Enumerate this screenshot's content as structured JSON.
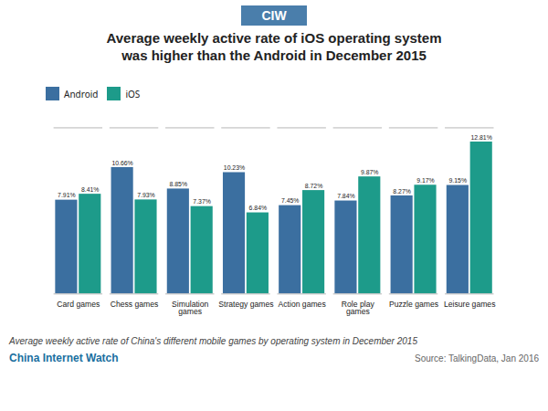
{
  "chart_data": {
    "type": "bar",
    "title": "Average weekly active rate of iOS operating system\nwas higher than the Android in December 2015",
    "categories": [
      "Card games",
      "Chess games",
      "Simulation\ngames",
      "Strategy games",
      "Action games",
      "Role play\ngames",
      "Puzzle games",
      "Leisure games"
    ],
    "series": [
      {
        "name": "Android",
        "color": "#3B6FA0",
        "values": [
          7.91,
          10.66,
          8.85,
          10.23,
          7.45,
          7.84,
          8.27,
          9.15
        ],
        "value_labels": [
          "7.91%",
          "10.66%",
          "8.85%",
          "10.23%",
          "7.45%",
          "7.84%",
          "8.27%",
          "9.15%"
        ]
      },
      {
        "name": "iOS",
        "color": "#1D9B8A",
        "values": [
          8.41,
          7.93,
          7.37,
          6.84,
          8.72,
          9.87,
          9.17,
          12.81
        ],
        "value_labels": [
          "8.41%",
          "7.93%",
          "7.37%",
          "6.84%",
          "8.72%",
          "9.87%",
          "9.17%",
          "12.81%"
        ]
      }
    ],
    "ylim": [
      0,
      14
    ],
    "yticks": [],
    "tick_labels": "x",
    "data_labels": true,
    "legend": "top",
    "grid": false,
    "annotations": [
      "CIW",
      "Average weekly active rate of China's different mobile games by operating system in December 2015",
      "China Internet Watch",
      "Source: TalkingData, Jan 2016"
    ]
  }
}
